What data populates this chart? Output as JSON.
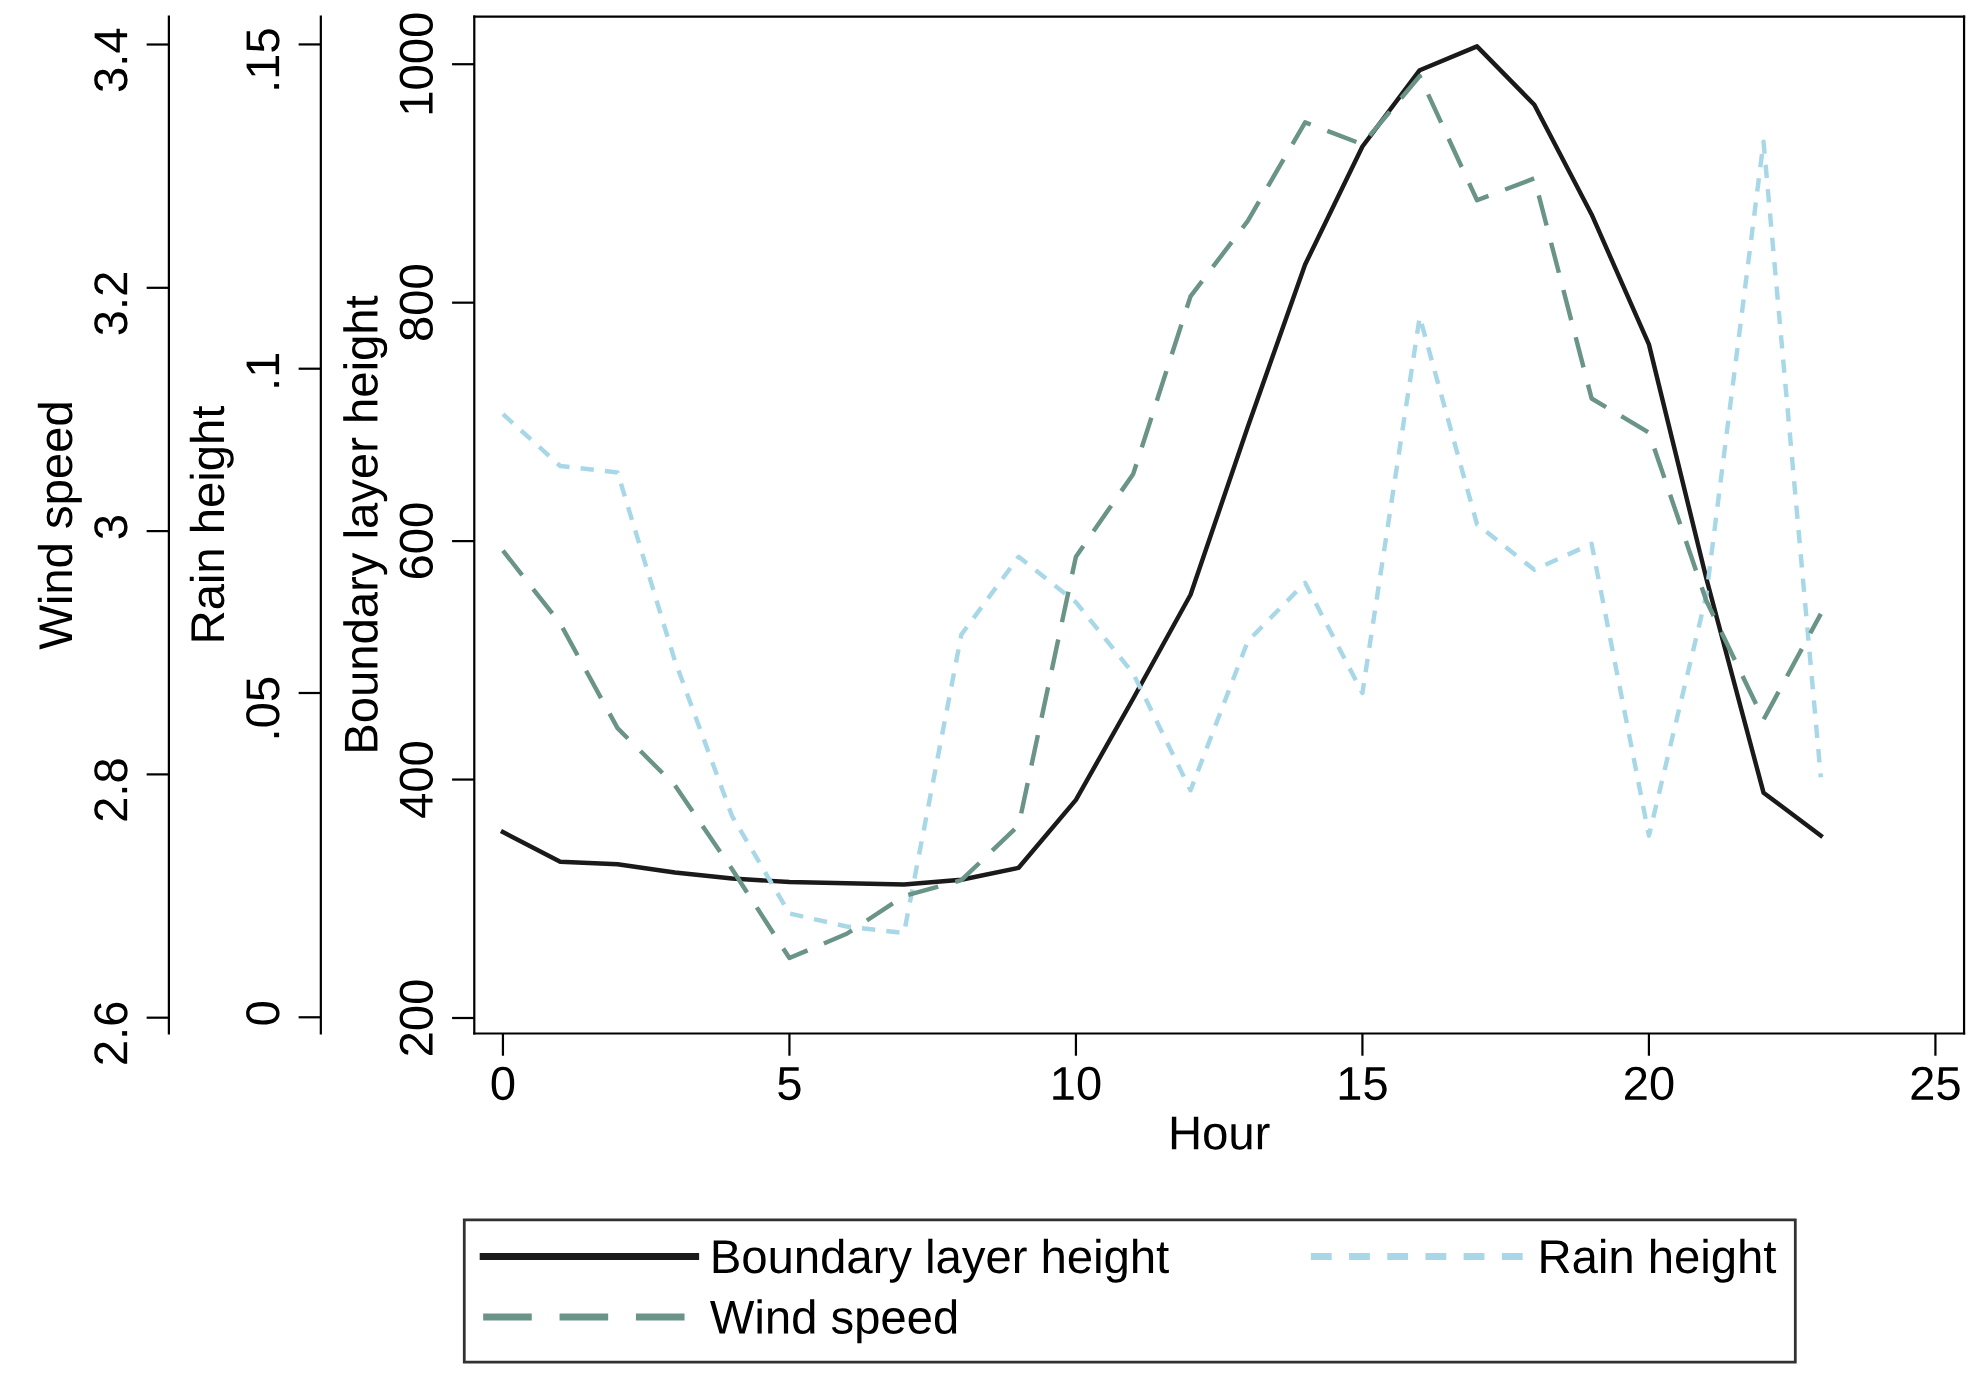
{
  "chart_data": {
    "type": "line",
    "xlabel": "Hour",
    "ylabel": "Boundary layer height",
    "y2label": "Rain height",
    "y3label": "Wind speed",
    "x": [
      0,
      1,
      2,
      3,
      4,
      5,
      6,
      7,
      8,
      9,
      10,
      11,
      12,
      13,
      14,
      15,
      16,
      17,
      18,
      19,
      20,
      21,
      22,
      23
    ],
    "series": [
      {
        "name": "Boundary layer height",
        "color": "#1a1a1a",
        "axis": "y",
        "line_style": "solid",
        "values": [
          356,
          331,
          329,
          322,
          317,
          314,
          313,
          312,
          316,
          326,
          383,
          468,
          555,
          696,
          832,
          931,
          995,
          1015,
          966,
          874,
          765,
          569,
          389,
          353
        ]
      },
      {
        "name": "Wind speed",
        "color": "#6a9487",
        "axis": "y3",
        "line_style": "dashed",
        "values": [
          2.984,
          2.924,
          2.838,
          2.791,
          2.722,
          2.649,
          2.669,
          2.7,
          2.713,
          2.758,
          2.979,
          3.047,
          3.193,
          3.255,
          3.336,
          3.318,
          3.374,
          3.272,
          3.29,
          3.109,
          3.081,
          2.943,
          2.845,
          2.932
        ]
      },
      {
        "name": "Rain height",
        "color": "#a8d8e8",
        "axis": "y2",
        "line_style": "dotted",
        "values": [
          0.093,
          0.085,
          0.084,
          0.055,
          0.031,
          0.016,
          0.014,
          0.013,
          0.059,
          0.071,
          0.064,
          0.053,
          0.035,
          0.058,
          0.067,
          0.05,
          0.108,
          0.076,
          0.069,
          0.073,
          0.028,
          0.065,
          0.135,
          0.037
        ]
      }
    ],
    "xlim": [
      -0.5,
      25.5
    ],
    "xticks": [
      0,
      5,
      10,
      15,
      20,
      25
    ],
    "ylim": [
      187,
      1040
    ],
    "yticks": [
      200,
      400,
      600,
      800,
      1000
    ],
    "y2lim": [
      -0.0025,
      0.1543
    ],
    "y2ticks": [
      {
        "value": 0,
        "label": "0"
      },
      {
        "value": 0.05,
        "label": ".05"
      },
      {
        "value": 0.1,
        "label": ".1"
      },
      {
        "value": 0.15,
        "label": ".15"
      }
    ],
    "y3lim": [
      2.587,
      3.423
    ],
    "y3ticks": [
      2.6,
      2.8,
      3,
      3.2,
      3.4
    ],
    "grid": false,
    "legend": "bottom",
    "marker": "none"
  }
}
